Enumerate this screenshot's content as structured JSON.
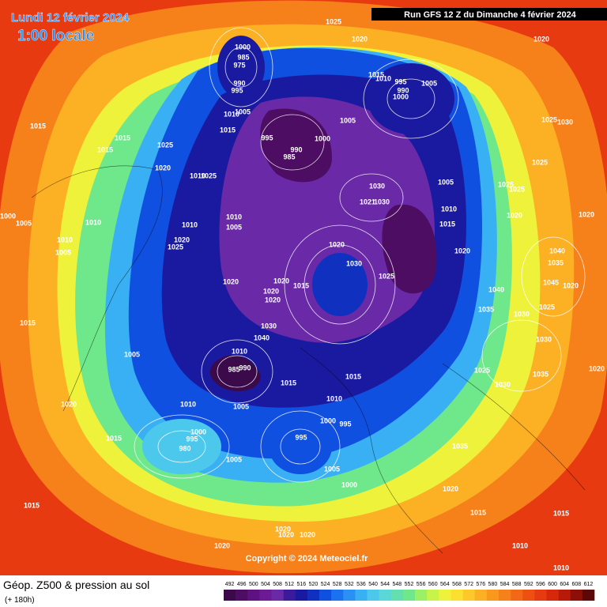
{
  "header": {
    "date": "Lundi 12 février 2024",
    "time": "1:00 locale",
    "run": "Run GFS 12 Z du Dimanche 4 février 2024"
  },
  "footer": {
    "title": "Géop. Z500 & pression au sol",
    "lead": "(+ 180h)",
    "copyright": "Copyright © 2024 Meteociel.fr"
  },
  "pressure_labels": [
    "1025",
    "1020",
    "1020",
    "1000",
    "985",
    "975",
    "990",
    "995",
    "1015",
    "1010",
    "995",
    "1005",
    "990",
    "1000",
    "1010",
    "1005",
    "1015",
    "1005",
    "1015",
    "1015",
    "995",
    "1000",
    "990",
    "1025",
    "1015",
    "985",
    "1025",
    "1030",
    "1025",
    "1020",
    "1010",
    "1025",
    "1005",
    "1025",
    "1025",
    "1030",
    "1021",
    "1030",
    "1010",
    "1020",
    "1000",
    "1005",
    "1010",
    "1010",
    "1010",
    "1005",
    "1015",
    "1020",
    "1010",
    "1020",
    "1025",
    "1005",
    "1020",
    "1020",
    "1040",
    "1035",
    "1030",
    "1025",
    "1020",
    "1020",
    "1015",
    "1045",
    "1020",
    "1040",
    "1020",
    "1020",
    "1025",
    "1035",
    "1015",
    "1030",
    "1030",
    "1040",
    "1030",
    "1005",
    "1010",
    "990",
    "985",
    "1025",
    "1015",
    "1035",
    "1020",
    "1015",
    "1030",
    "1005",
    "1010",
    "1020",
    "1010",
    "1000",
    "995",
    "1000",
    "995",
    "980",
    "1015",
    "995",
    "1035",
    "1005",
    "1005",
    "1000",
    "1020",
    "1015",
    "1015",
    "1015",
    "1020",
    "1020",
    "1020",
    "1020",
    "1010",
    "1010"
  ],
  "legend": {
    "labels": [
      "492",
      "496",
      "500",
      "504",
      "508",
      "512",
      "516",
      "520",
      "524",
      "528",
      "532",
      "536",
      "540",
      "544",
      "548",
      "552",
      "556",
      "560",
      "564",
      "568",
      "572",
      "576",
      "580",
      "584",
      "588",
      "592",
      "596",
      "600",
      "604",
      "608",
      "612"
    ],
    "colors": [
      "#3a0a4a",
      "#4d0d63",
      "#5e1180",
      "#6c1a96",
      "#6a2aa8",
      "#3c1a9c",
      "#1a1aa0",
      "#1030c0",
      "#1050e0",
      "#1a72f0",
      "#2a90f4",
      "#3ab0f4",
      "#4cc8ec",
      "#5ad8d8",
      "#64e0b0",
      "#6ee88a",
      "#9cf066",
      "#c8f44a",
      "#eef23a",
      "#fce030",
      "#fcc82a",
      "#fcb024",
      "#fa981e",
      "#f6801a",
      "#f26816",
      "#ee5012",
      "#e83a10",
      "#d8280c",
      "#b81a0a",
      "#8c1008",
      "#5c0806"
    ]
  }
}
